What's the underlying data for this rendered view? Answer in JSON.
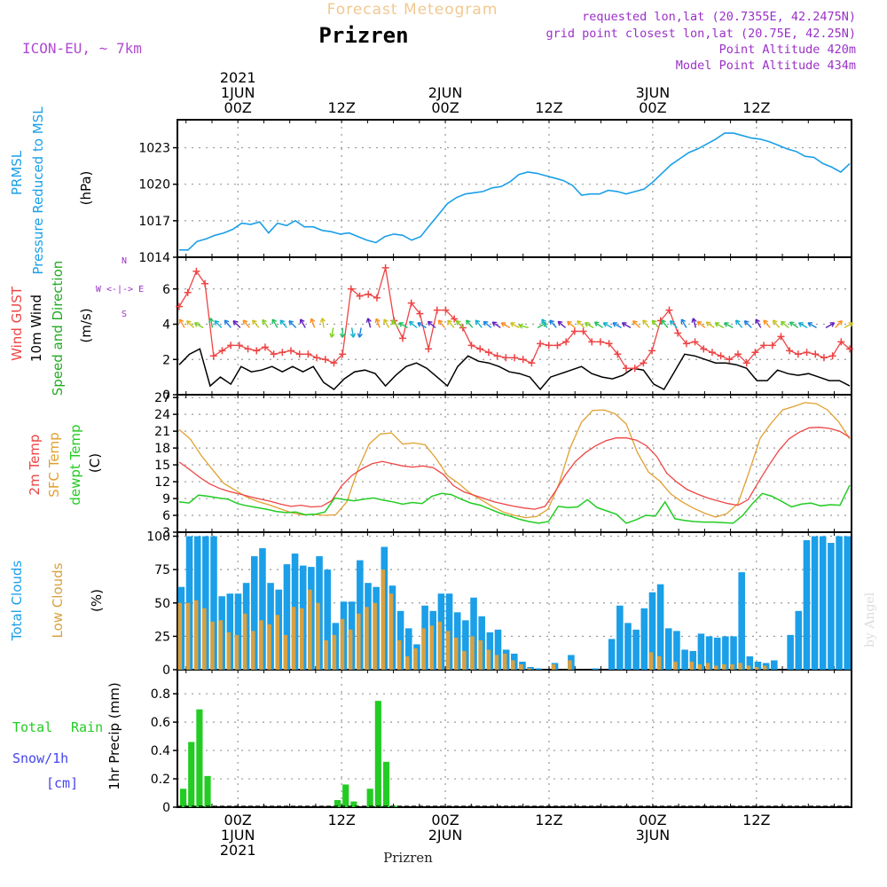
{
  "header": {
    "title": "Forecast Meteogram",
    "location": "Prizren",
    "model": "ICON-EU, ~ 7km",
    "requested": "requested lon,lat (20.7355E, 42.2475N)",
    "gridpoint": "grid point closest lon,lat (20.75E, 42.25N)",
    "point_alt": "Point Altitude 420m",
    "model_alt": "Model Point Altitude 434m",
    "footer": "Prizren",
    "credit": "by Angel"
  },
  "colors": {
    "pressure": "#1a9fe8",
    "gust": "#ee4444",
    "wind": "#000000",
    "direction": "#22aa22",
    "temp2m": "#ee4444",
    "sfc": "#e0a030",
    "dewpt": "#22cc22",
    "total_clouds": "#1a9fe8",
    "low_clouds": "#d8a040",
    "rain": "#22cc22",
    "snow": "#4444ee",
    "header": "#9b30c8"
  },
  "time_axis": {
    "top": [
      {
        "lines": [
          "2021",
          "1JUN",
          "00Z"
        ],
        "hour": 7
      },
      {
        "lines": [
          "12Z"
        ],
        "hour": 19
      },
      {
        "lines": [
          "2JUN",
          "00Z"
        ],
        "hour": 31
      },
      {
        "lines": [
          "12Z"
        ],
        "hour": 43
      },
      {
        "lines": [
          "3JUN",
          "00Z"
        ],
        "hour": 55
      },
      {
        "lines": [
          "12Z"
        ],
        "hour": 67
      }
    ],
    "bottom": [
      {
        "lines": [
          "00Z",
          "1JUN",
          "2021"
        ],
        "hour": 7
      },
      {
        "lines": [
          "12Z"
        ],
        "hour": 19
      },
      {
        "lines": [
          "00Z",
          "2JUN"
        ],
        "hour": 31
      },
      {
        "lines": [
          "12Z"
        ],
        "hour": 43
      },
      {
        "lines": [
          "00Z",
          "3JUN"
        ],
        "hour": 55
      },
      {
        "lines": [
          "12Z"
        ],
        "hour": 67
      }
    ]
  },
  "chart_data": [
    {
      "type": "line",
      "ylabel": [
        "PRMSL",
        "Pressure Reduced to MSL"
      ],
      "unit": "(hPa)",
      "yticks": [
        1014,
        1017,
        1020,
        1023
      ],
      "ylim": [
        1014,
        1025.3
      ],
      "series": [
        {
          "values": [
            1014.6,
            1014.6,
            1015.3,
            1015.5,
            1015.8,
            1016.0,
            1016.3,
            1016.8,
            1016.7,
            1016.9,
            1016.0,
            1016.8,
            1016.6,
            1017.0,
            1016.5,
            1016.5,
            1016.2,
            1016.1,
            1015.9,
            1016.0,
            1015.7,
            1015.4,
            1015.2,
            1015.7,
            1015.9,
            1015.8,
            1015.4,
            1015.7,
            1016.6,
            1017.5,
            1018.4,
            1018.9,
            1019.2,
            1019.3,
            1019.4,
            1019.7,
            1019.8,
            1020.2,
            1020.8,
            1021.0,
            1020.9,
            1020.7,
            1020.5,
            1020.3,
            1019.9,
            1019.1,
            1019.2,
            1019.2,
            1019.5,
            1019.4,
            1019.2,
            1019.4,
            1019.6,
            1020.2,
            1020.9,
            1021.6,
            1022.1,
            1022.6,
            1022.9,
            1023.3,
            1023.7,
            1024.2,
            1024.2,
            1024.0,
            1023.8,
            1023.7,
            1023.5,
            1023.2,
            1022.9,
            1022.7,
            1022.3,
            1022.2,
            1021.7,
            1021.4,
            1021.0,
            1021.7
          ]
        }
      ]
    },
    {
      "type": "line",
      "ylabel": [
        "Wind GUST",
        "10m Wind",
        "Speed and Direction"
      ],
      "unit": "(m/s)",
      "compass": [
        "N",
        "W <-|-> E",
        "S"
      ],
      "yticks": [
        0,
        2,
        4,
        6
      ],
      "ylim": [
        0,
        7.8
      ],
      "series": [
        {
          "name": "Wind GUST",
          "values": [
            5.0,
            5.8,
            7.0,
            6.3,
            2.2,
            2.5,
            2.8,
            2.8,
            2.6,
            2.5,
            2.7,
            2.3,
            2.4,
            2.5,
            2.3,
            2.3,
            2.1,
            2.0,
            1.8,
            2.3,
            6.0,
            5.6,
            5.7,
            5.5,
            7.2,
            4.2,
            3.2,
            5.2,
            4.6,
            2.6,
            4.8,
            4.8,
            4.3,
            3.8,
            2.8,
            2.6,
            2.4,
            2.2,
            2.1,
            2.1,
            2.0,
            1.8,
            2.9,
            2.8,
            2.8,
            3.0,
            3.6,
            3.6,
            3.0,
            3.0,
            2.9,
            2.3,
            1.5,
            1.5,
            1.8,
            2.5,
            4.2,
            4.8,
            3.5,
            2.9,
            3.0,
            2.6,
            2.4,
            2.2,
            2.0,
            2.3,
            1.8,
            2.4,
            2.8,
            2.8,
            3.3,
            2.5,
            2.3,
            2.4,
            2.3,
            2.1,
            2.2,
            3.0,
            2.6
          ]
        },
        {
          "name": "10m Wind",
          "values": [
            1.7,
            2.3,
            2.6,
            0.5,
            1.0,
            0.6,
            1.6,
            1.3,
            1.4,
            1.6,
            1.3,
            1.6,
            1.3,
            1.6,
            0.7,
            0.3,
            0.9,
            1.3,
            1.4,
            1.2,
            0.5,
            1.1,
            1.6,
            1.8,
            1.5,
            1.0,
            0.5,
            1.6,
            2.2,
            1.9,
            1.8,
            1.6,
            1.3,
            1.2,
            1.0,
            0.3,
            1.0,
            1.2,
            1.4,
            1.6,
            1.2,
            1.0,
            0.9,
            1.1,
            1.5,
            1.4,
            0.6,
            0.3,
            1.3,
            2.3,
            2.2,
            2.0,
            1.8,
            1.8,
            1.7,
            1.5,
            0.8,
            0.8,
            1.4,
            1.2,
            1.1,
            1.2,
            1.0,
            0.8,
            0.8,
            0.5
          ]
        },
        {
          "name": "Direction",
          "values": [
            330,
            315,
            300,
            350,
            315,
            320,
            315,
            320,
            320,
            325,
            330,
            320,
            315,
            330,
            340,
            350,
            190,
            180,
            170,
            190,
            345,
            340,
            330,
            320,
            300,
            310,
            300,
            310,
            320,
            320,
            315,
            320,
            320,
            310,
            305,
            300,
            300,
            285,
            60,
            330,
            320,
            310,
            310,
            315,
            300,
            305,
            300,
            300,
            300,
            315,
            320,
            320,
            320,
            315,
            330,
            345,
            310,
            305,
            300,
            300,
            320,
            315,
            330,
            320,
            320,
            310,
            305,
            300,
            300,
            60,
            45,
            60
          ]
        }
      ]
    },
    {
      "type": "line",
      "ylabel": [
        "2m Temp",
        "SFC Temp",
        "dewpt Temp"
      ],
      "unit": "(C)",
      "yticks": [
        3,
        6,
        9,
        12,
        15,
        18,
        21,
        24,
        27
      ],
      "ylim": [
        3,
        27.5
      ],
      "series": [
        {
          "name": "2m Temp",
          "values": [
            15.5,
            14.2,
            12.8,
            11.6,
            10.8,
            10.2,
            9.8,
            9.3,
            8.9,
            8.5,
            8.0,
            7.6,
            7.8,
            7.5,
            7.6,
            8.6,
            11.3,
            13.1,
            14.3,
            15.2,
            15.6,
            15.2,
            14.8,
            14.6,
            14.8,
            14.5,
            13.3,
            11.3,
            10.2,
            9.6,
            9.0,
            8.4,
            8.0,
            7.6,
            7.3,
            7.1,
            7.6,
            10.2,
            13.2,
            15.6,
            17.2,
            18.4,
            19.3,
            19.8,
            19.8,
            19.4,
            18.4,
            16.5,
            13.5,
            11.9,
            10.6,
            9.8,
            9.1,
            8.6,
            8.1,
            7.8,
            8.8,
            11.9,
            14.8,
            17.5,
            19.6,
            20.8,
            21.6,
            21.7,
            21.5,
            21.0,
            19.9
          ]
        },
        {
          "name": "SFC Temp",
          "values": [
            21.3,
            19.6,
            16.6,
            14.1,
            11.7,
            10.5,
            9.3,
            8.5,
            7.9,
            7.2,
            6.5,
            6.1,
            6.2,
            6.0,
            6.1,
            8.4,
            14.2,
            18.7,
            20.5,
            20.7,
            18.7,
            18.9,
            18.6,
            16.1,
            13.1,
            11.7,
            10.0,
            8.8,
            7.6,
            6.6,
            6.0,
            5.6,
            5.8,
            7.1,
            11.7,
            18.1,
            22.6,
            24.7,
            24.8,
            24.1,
            22.3,
            17.2,
            13.7,
            12.1,
            9.8,
            8.4,
            7.3,
            6.4,
            5.7,
            6.3,
            8.1,
            13.8,
            19.8,
            22.5,
            24.8,
            25.4,
            26.1,
            25.9,
            24.8,
            22.7,
            19.6
          ]
        },
        {
          "name": "dewpt Temp",
          "values": [
            8.4,
            8.2,
            9.6,
            9.4,
            9.1,
            8.9,
            8.1,
            7.7,
            7.4,
            7.1,
            6.7,
            6.5,
            6.6,
            6.1,
            6.2,
            6.6,
            9.1,
            8.8,
            8.6,
            8.9,
            9.1,
            8.7,
            8.4,
            8.0,
            8.3,
            8.1,
            9.4,
            9.9,
            9.7,
            8.9,
            8.2,
            7.8,
            7.1,
            6.4,
            5.9,
            5.3,
            4.9,
            4.6,
            4.9,
            7.6,
            7.4,
            7.5,
            8.8,
            7.4,
            6.8,
            6.2,
            4.6,
            5.2,
            6.0,
            5.9,
            8.4,
            5.4,
            5.1,
            4.9,
            4.8,
            4.8,
            4.7,
            4.6,
            6.0,
            8.1,
            9.9,
            9.4,
            8.5,
            7.5,
            8.0,
            8.2,
            7.7,
            7.9,
            7.8,
            11.4
          ]
        }
      ]
    },
    {
      "type": "bar",
      "ylabel": [
        "Total Clouds",
        "Low Clouds"
      ],
      "unit": "(%)",
      "yticks": [
        0,
        25,
        50,
        75,
        100
      ],
      "ylim": [
        0,
        103
      ],
      "series": [
        {
          "name": "Total Clouds",
          "values": [
            62,
            100,
            100,
            100,
            100,
            55,
            57,
            57,
            65,
            85,
            91,
            65,
            60,
            79,
            87,
            78,
            77,
            85,
            75,
            35,
            51,
            51,
            82,
            65,
            62,
            92,
            63,
            44,
            31,
            19,
            48,
            44,
            57,
            57,
            43,
            37,
            54,
            40,
            28,
            30,
            15,
            12,
            6,
            2,
            1,
            0,
            5,
            0,
            11,
            0,
            0,
            1,
            0,
            23,
            48,
            35,
            30,
            46,
            58,
            64,
            31,
            29,
            15,
            14,
            27,
            25,
            24,
            25,
            25,
            73,
            10,
            6,
            5,
            7,
            0,
            26,
            44,
            97,
            100,
            100,
            95,
            100,
            100
          ]
        },
        {
          "name": "Low Clouds",
          "values": [
            50,
            50,
            52,
            46,
            36,
            37,
            28,
            26,
            42,
            29,
            37,
            34,
            41,
            26,
            47,
            46,
            60,
            50,
            22,
            26,
            38,
            30,
            42,
            47,
            50,
            75,
            57,
            22,
            10,
            16,
            31,
            33,
            36,
            29,
            24,
            14,
            25,
            22,
            15,
            11,
            12,
            7,
            4,
            1,
            0,
            0,
            4,
            0,
            7,
            0,
            0,
            0,
            0,
            0,
            0,
            0,
            0,
            0,
            13,
            10,
            0,
            6,
            0,
            6,
            4,
            5,
            3,
            4,
            4,
            5,
            3,
            2,
            3,
            0,
            0,
            0,
            0,
            0,
            0,
            0,
            0,
            0,
            0
          ]
        }
      ]
    },
    {
      "type": "bar",
      "ylabel": [
        "1hr Precip (mm)"
      ],
      "unit": "",
      "legend": [
        "Total",
        "Rain",
        "Snow/1h",
        "[cm]"
      ],
      "yticks": [
        0,
        0.2,
        0.4,
        0.6,
        0.8
      ],
      "ylim": [
        0,
        0.97
      ],
      "series": [
        {
          "name": "Total Rain",
          "values": [
            0.13,
            0.46,
            0.69,
            0.22,
            0,
            0,
            0,
            0,
            0,
            0,
            0,
            0,
            0,
            0,
            0,
            0,
            0,
            0,
            0,
            0.05,
            0.16,
            0.04,
            0,
            0.13,
            0.75,
            0.32,
            0.01,
            0,
            0,
            0,
            0,
            0,
            0,
            0,
            0,
            0,
            0,
            0,
            0,
            0,
            0,
            0,
            0,
            0,
            0,
            0,
            0,
            0,
            0,
            0,
            0,
            0,
            0,
            0,
            0,
            0,
            0,
            0,
            0,
            0,
            0,
            0,
            0,
            0,
            0,
            0,
            0,
            0,
            0,
            0,
            0,
            0,
            0,
            0,
            0,
            0,
            0,
            0,
            0,
            0,
            0,
            0,
            0
          ]
        }
      ]
    }
  ]
}
